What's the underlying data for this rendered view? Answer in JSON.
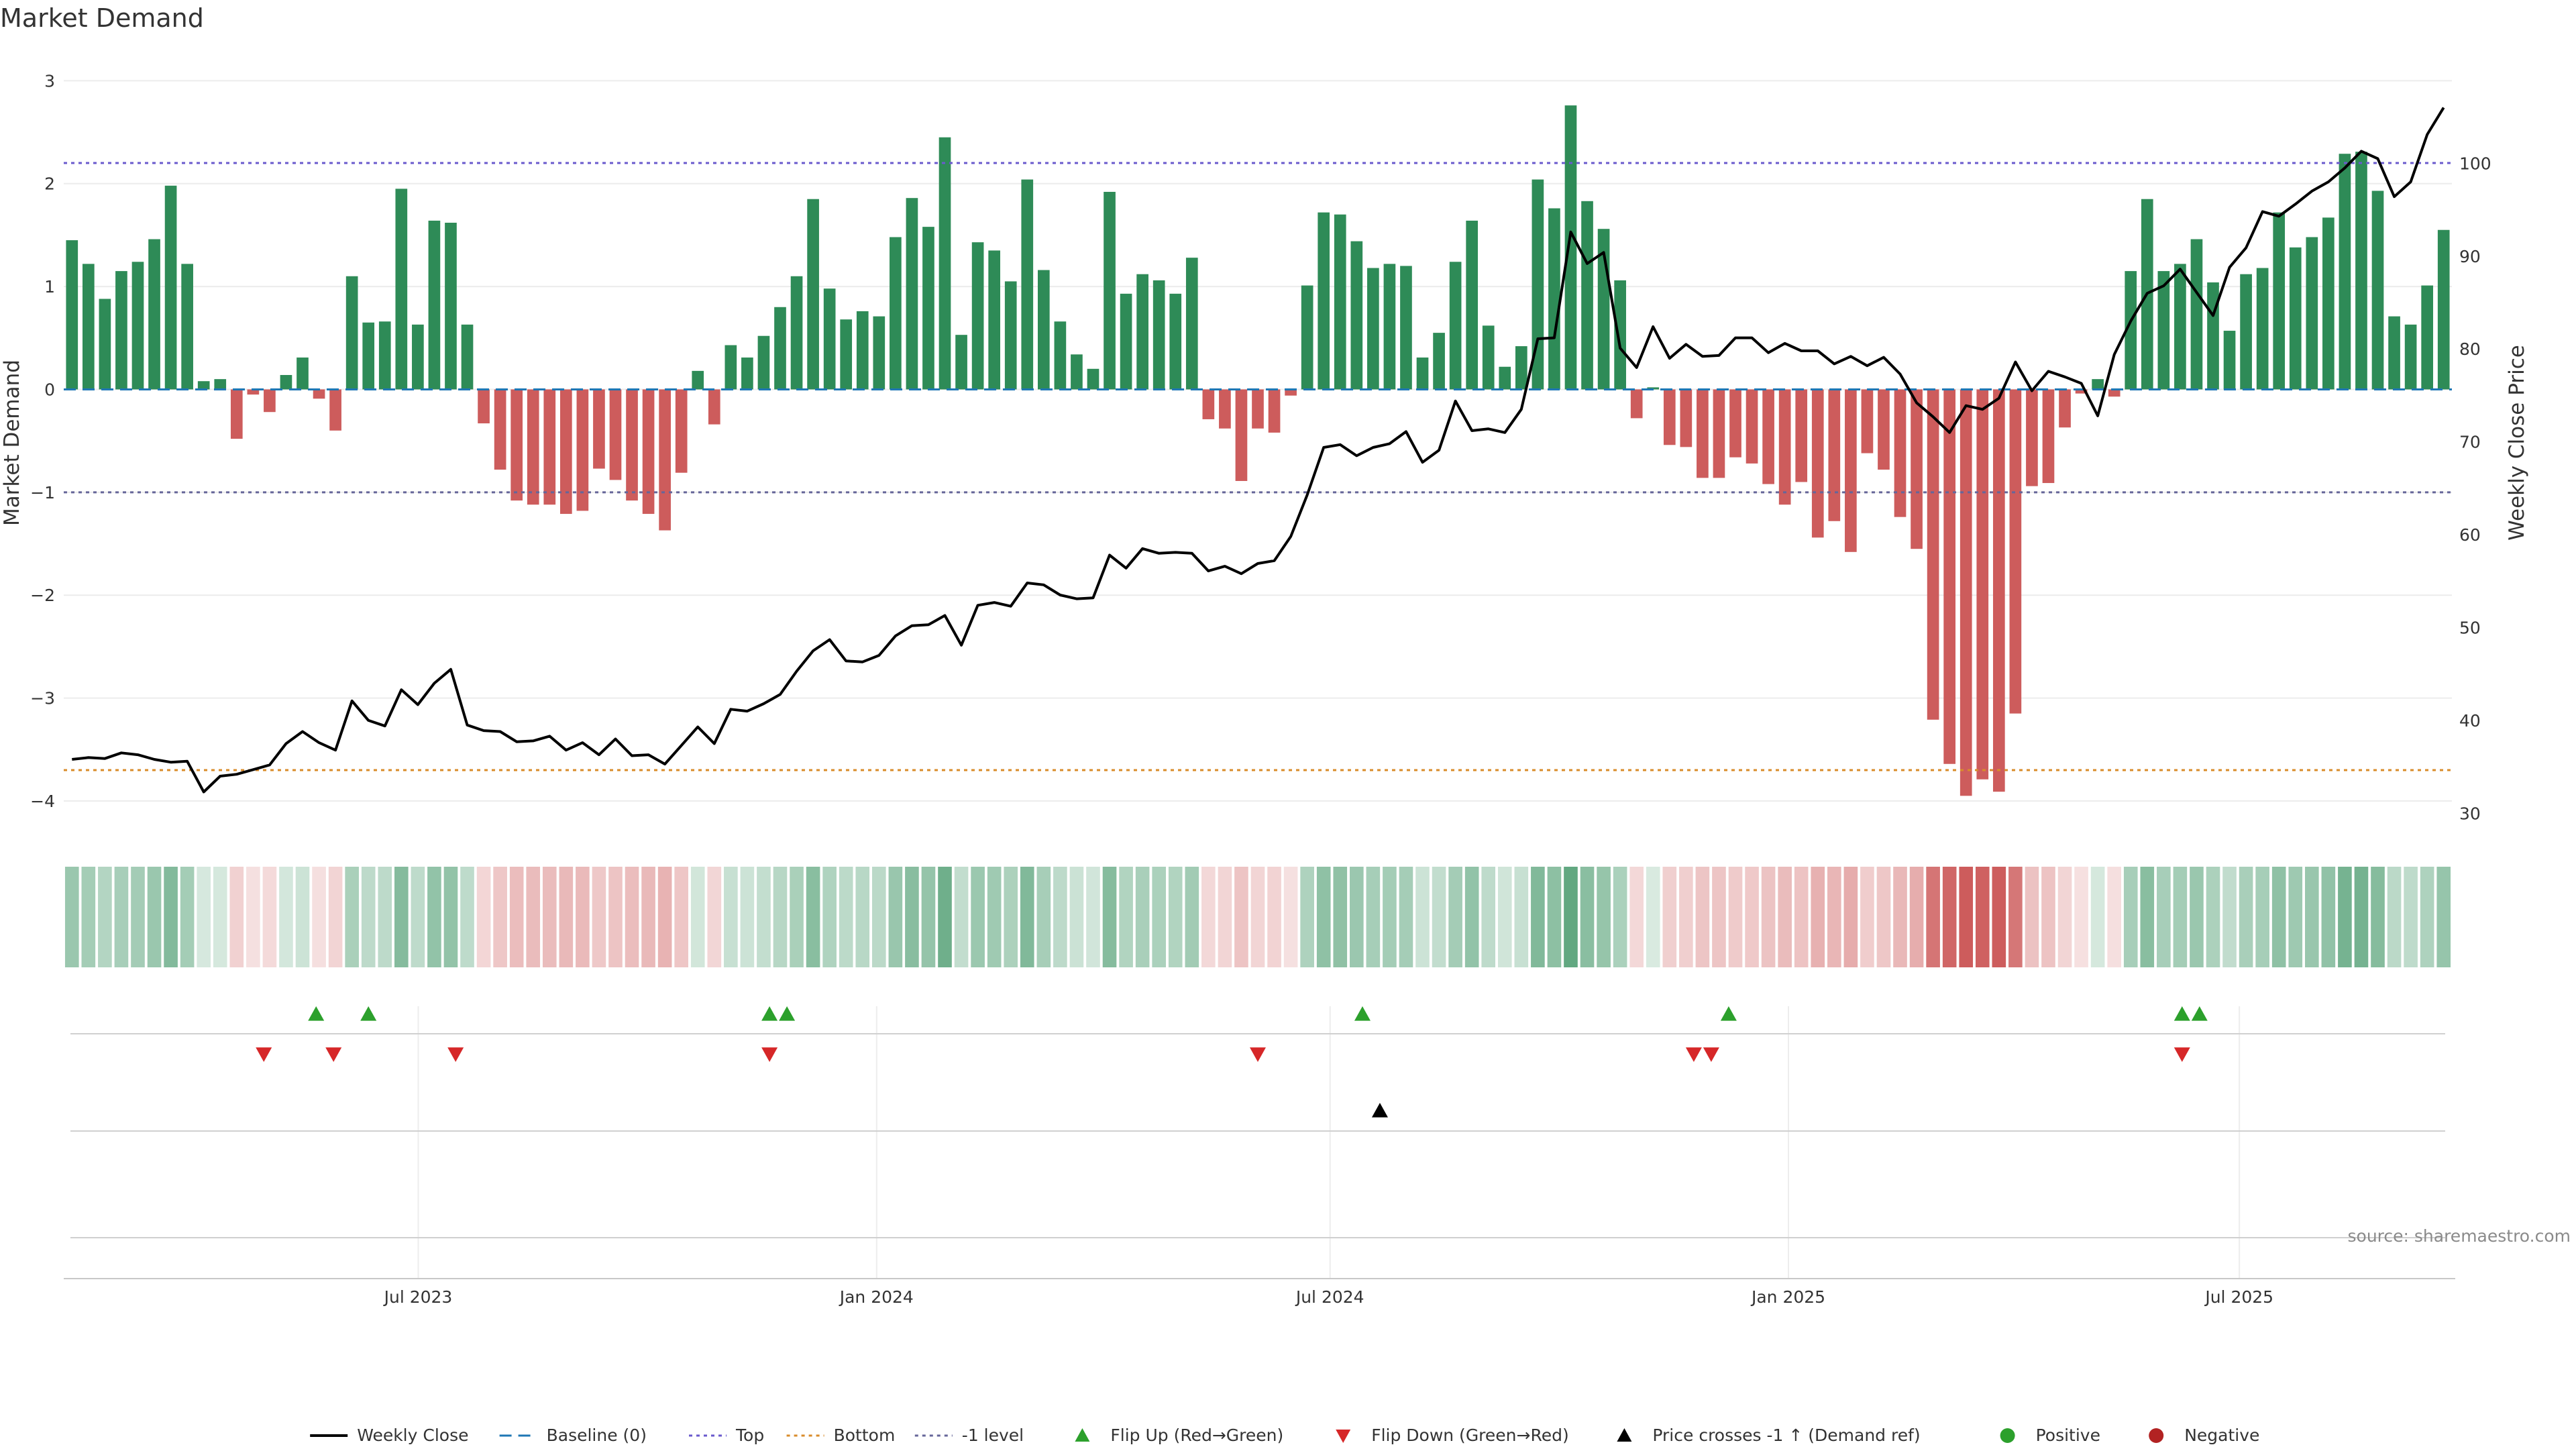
{
  "chart_data": {
    "type": "bar",
    "title": "Market Demand",
    "ylabel": "Market Demand",
    "y2label": "Weekly Close Price",
    "ylim": [
      -4.3,
      3.1
    ],
    "y2lim": [
      28,
      110
    ],
    "yticks": [
      "3",
      "2",
      "1",
      "0",
      "−1",
      "−2",
      "−3",
      "−4"
    ],
    "yticks_values": [
      3,
      2,
      1,
      0,
      -1,
      -2,
      -3,
      -4
    ],
    "y2ticks": [
      "30",
      "40",
      "50",
      "60",
      "70",
      "80",
      "90",
      "100"
    ],
    "y2ticks_values": [
      30,
      40,
      50,
      60,
      70,
      80,
      90,
      100
    ],
    "x_start": "2023-02-12",
    "x_end": "2025-09-21",
    "xticks": [
      {
        "date": "2023-07-01",
        "label": "Jul 2023"
      },
      {
        "date": "2024-01-01",
        "label": "Jan 2024"
      },
      {
        "date": "2024-07-01",
        "label": "Jul 2024"
      },
      {
        "date": "2025-01-01",
        "label": "Jan 2025"
      },
      {
        "date": "2025-07-01",
        "label": "Jul 2025"
      }
    ],
    "reference_lines": [
      {
        "name": "Top",
        "value": 2.2,
        "color": "#6a5acd"
      },
      {
        "name": "Bottom",
        "value": -3.7,
        "color": "#d98c2b"
      },
      {
        "name": "-1 level",
        "value": -1,
        "color": "#666699"
      },
      {
        "name": "Baseline (0)",
        "value": 0,
        "color": "#1f77b4"
      }
    ],
    "colors": {
      "positive": "#2e8b57",
      "negative": "#cd5c5c",
      "price": "#000000",
      "flip_up": "#2ca02c",
      "flip_down": "#d62728",
      "cross": "#000000",
      "positive_dot": "#2ca02c",
      "negative_dot": "#b22222"
    },
    "series": [
      {
        "name": "Market Demand",
        "values": [
          1.45,
          1.22,
          0.88,
          1.15,
          1.24,
          1.46,
          1.98,
          1.22,
          0.08,
          0.1,
          -0.48,
          -0.05,
          -0.22,
          0.14,
          0.31,
          -0.09,
          -0.4,
          1.1,
          0.65,
          0.66,
          1.95,
          0.63,
          1.64,
          1.62,
          0.63,
          -0.33,
          -0.78,
          -1.08,
          -1.12,
          -1.12,
          -1.21,
          -1.18,
          -0.77,
          -0.88,
          -1.08,
          -1.21,
          -1.37,
          -0.81,
          0.18,
          -0.34,
          0.43,
          0.31,
          0.52,
          0.8,
          1.1,
          1.85,
          0.98,
          0.68,
          0.76,
          0.71,
          1.48,
          1.86,
          1.58,
          2.45,
          0.53,
          1.43,
          1.35,
          1.05,
          2.04,
          1.16,
          0.66,
          0.34,
          0.2,
          1.92,
          0.93,
          1.12,
          1.06,
          0.93,
          1.28,
          -0.29,
          -0.38,
          -0.89,
          -0.38,
          -0.42,
          -0.06,
          1.01,
          1.72,
          1.7,
          1.44,
          1.18,
          1.22,
          1.2,
          0.31,
          0.55,
          1.24,
          1.64,
          0.62,
          0.22,
          0.42,
          2.04,
          1.76,
          2.76,
          1.83,
          1.56,
          1.06,
          -0.28,
          0.02,
          -0.54,
          -0.56,
          -0.86,
          -0.86,
          -0.66,
          -0.72,
          -0.92,
          -1.12,
          -0.9,
          -1.44,
          -1.28,
          -1.58,
          -0.62,
          -0.78,
          -1.24,
          -1.55,
          -3.21,
          -3.64,
          -3.95,
          -3.79,
          -3.91,
          -3.15,
          -0.94,
          -0.91,
          -0.37,
          -0.04,
          0.1,
          -0.07,
          1.15,
          1.85,
          1.15,
          1.22,
          1.46,
          1.04,
          0.57,
          1.12,
          1.18,
          1.72,
          1.38,
          1.48,
          1.67,
          2.29,
          2.31,
          1.93,
          0.71,
          0.63,
          1.01,
          1.55
        ]
      },
      {
        "name": "Weekly Close",
        "values": [
          35.8,
          36.0,
          35.9,
          36.5,
          36.3,
          35.8,
          35.5,
          35.6,
          32.3,
          34.0,
          34.2,
          34.7,
          35.2,
          37.5,
          38.8,
          37.6,
          36.8,
          42.1,
          40.0,
          39.4,
          43.3,
          41.7,
          44.0,
          45.5,
          39.5,
          38.9,
          38.8,
          37.7,
          37.8,
          38.3,
          36.8,
          37.6,
          36.3,
          38.0,
          36.2,
          36.3,
          35.3,
          37.3,
          39.3,
          37.5,
          41.2,
          41.0,
          41.8,
          42.8,
          45.3,
          47.5,
          48.7,
          46.4,
          46.3,
          47.0,
          49.1,
          50.2,
          50.3,
          51.3,
          48.1,
          52.4,
          52.7,
          52.3,
          54.8,
          54.6,
          53.5,
          53.1,
          53.2,
          57.8,
          56.4,
          58.5,
          58.0,
          58.1,
          58.0,
          56.1,
          56.6,
          55.8,
          56.9,
          57.2,
          59.8,
          64.3,
          69.4,
          69.7,
          68.5,
          69.4,
          69.8,
          71.1,
          67.8,
          69.1,
          74.4,
          71.2,
          71.4,
          71.0,
          73.5,
          81.1,
          81.2,
          92.6,
          89.2,
          90.4,
          80.1,
          78.0,
          82.4,
          79.0,
          80.5,
          79.2,
          79.3,
          81.2,
          81.2,
          79.6,
          80.6,
          79.8,
          79.8,
          78.4,
          79.2,
          78.2,
          79.1,
          77.3,
          74.2,
          72.7,
          71.0,
          73.9,
          73.5,
          74.7,
          78.6,
          75.5,
          77.6,
          77.0,
          76.3,
          72.8,
          79.4,
          83.0,
          86.0,
          86.8,
          88.6,
          86.1,
          83.6,
          88.8,
          90.9,
          94.8,
          94.3,
          95.6,
          97.0,
          98.0,
          99.5,
          101.3,
          100.5,
          96.4,
          98.0,
          103.1,
          106.0
        ]
      }
    ],
    "heatmap_strip": {
      "note": "color intensity per week follows Market Demand sign and magnitude"
    },
    "flip_up": [
      "2023-05-21",
      "2023-06-11",
      "2023-11-19",
      "2023-11-26",
      "2024-07-14",
      "2024-12-08",
      "2025-06-08",
      "2025-06-15"
    ],
    "flip_down": [
      "2023-04-30",
      "2023-05-28",
      "2023-07-16",
      "2023-11-19",
      "2024-06-02",
      "2024-11-24",
      "2024-12-01",
      "2025-06-08"
    ],
    "price_cross": [
      "2024-07-21"
    ],
    "legend": {
      "placement": "bottom",
      "items": [
        {
          "key": "weekly_close",
          "label": "Weekly Close"
        },
        {
          "key": "baseline",
          "label": "Baseline (0)"
        },
        {
          "key": "top",
          "label": "Top"
        },
        {
          "key": "bottom",
          "label": "Bottom"
        },
        {
          "key": "minus1",
          "label": "-1 level"
        },
        {
          "key": "flip_up",
          "label": "Flip Up (Red→Green)"
        },
        {
          "key": "flip_down",
          "label": "Flip Down (Green→Red)"
        },
        {
          "key": "cross",
          "label": "Price crosses -1 ↑ (Demand ref)"
        },
        {
          "key": "positive",
          "label": "Positive"
        },
        {
          "key": "negative",
          "label": "Negative"
        }
      ]
    },
    "source": "source: sharemaestro.com"
  }
}
